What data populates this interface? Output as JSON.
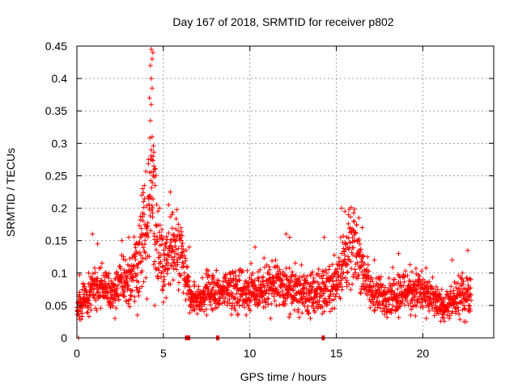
{
  "chart_data": {
    "type": "scatter",
    "title": "Day 167 of 2018, SRMTID for receiver p802",
    "xlabel": "GPS time / hours",
    "ylabel": "SRMTID / TECUs",
    "xlim": [
      0,
      24.1
    ],
    "ylim": [
      0,
      0.45
    ],
    "grid": true,
    "x_ticks": [
      {
        "value": 0,
        "label": "0"
      },
      {
        "value": 5,
        "label": "5"
      },
      {
        "value": 10,
        "label": "10"
      },
      {
        "value": 15,
        "label": "15"
      },
      {
        "value": 20,
        "label": "20"
      }
    ],
    "y_ticks": [
      {
        "value": 0,
        "label": "0"
      },
      {
        "value": 0.05,
        "label": "0.05"
      },
      {
        "value": 0.1,
        "label": "0.1"
      },
      {
        "value": 0.15,
        "label": "0.15"
      },
      {
        "value": 0.2,
        "label": "0.2"
      },
      {
        "value": 0.25,
        "label": "0.25"
      },
      {
        "value": 0.3,
        "label": "0.3"
      },
      {
        "value": 0.35,
        "label": "0.35"
      },
      {
        "value": 0.4,
        "label": "0.4"
      },
      {
        "value": 0.45,
        "label": "0.45"
      }
    ],
    "marker": "+",
    "series": [
      {
        "name": "SRMTID",
        "color": "#ff0000",
        "envelope_hours": [
          0,
          0.5,
          1,
          1.5,
          2,
          2.5,
          3,
          3.5,
          4,
          4.2,
          4.4,
          4.6,
          5,
          5.3,
          5.7,
          6,
          6.3,
          6.6,
          7,
          7.5,
          8,
          8.5,
          9,
          9.5,
          10,
          10.5,
          11,
          11.5,
          12,
          12.5,
          13,
          13.5,
          14,
          14.5,
          15,
          15.3,
          15.7,
          16,
          16.3,
          16.6,
          17,
          17.5,
          18,
          18.5,
          19,
          19.5,
          20,
          20.5,
          21,
          21.5,
          22,
          22.5,
          22.8
        ],
        "envelope_center": [
          0.045,
          0.06,
          0.08,
          0.08,
          0.075,
          0.085,
          0.09,
          0.11,
          0.17,
          0.21,
          0.25,
          0.18,
          0.11,
          0.125,
          0.145,
          0.13,
          0.1,
          0.065,
          0.06,
          0.07,
          0.07,
          0.075,
          0.08,
          0.075,
          0.075,
          0.075,
          0.08,
          0.08,
          0.075,
          0.075,
          0.07,
          0.065,
          0.07,
          0.075,
          0.09,
          0.11,
          0.13,
          0.14,
          0.13,
          0.1,
          0.07,
          0.065,
          0.065,
          0.07,
          0.075,
          0.075,
          0.07,
          0.06,
          0.05,
          0.05,
          0.06,
          0.07,
          0.07
        ],
        "envelope_spread": [
          0.02,
          0.025,
          0.03,
          0.03,
          0.025,
          0.03,
          0.035,
          0.05,
          0.07,
          0.08,
          0.12,
          0.08,
          0.04,
          0.04,
          0.045,
          0.04,
          0.035,
          0.02,
          0.02,
          0.025,
          0.025,
          0.025,
          0.03,
          0.03,
          0.03,
          0.03,
          0.03,
          0.035,
          0.03,
          0.03,
          0.03,
          0.03,
          0.03,
          0.03,
          0.035,
          0.045,
          0.05,
          0.05,
          0.045,
          0.035,
          0.025,
          0.025,
          0.025,
          0.03,
          0.03,
          0.03,
          0.03,
          0.025,
          0.02,
          0.02,
          0.025,
          0.03,
          0.025
        ],
        "points": [
          [
            4.3,
            0.445
          ],
          [
            4.35,
            0.43
          ],
          [
            4.4,
            0.44
          ],
          [
            4.25,
            0.42
          ],
          [
            4.3,
            0.4
          ],
          [
            4.35,
            0.385
          ],
          [
            4.2,
            0.37
          ],
          [
            4.3,
            0.36
          ],
          [
            4.25,
            0.335
          ],
          [
            4.35,
            0.31
          ],
          [
            4.3,
            0.29
          ],
          [
            4.4,
            0.28
          ],
          [
            4.45,
            0.265
          ],
          [
            4.5,
            0.26
          ],
          [
            4.4,
            0.25
          ],
          [
            4.2,
            0.255
          ],
          [
            3.8,
            0.23
          ],
          [
            3.9,
            0.235
          ],
          [
            3.75,
            0.22
          ],
          [
            3.85,
            0.21
          ],
          [
            5.4,
            0.225
          ],
          [
            5.3,
            0.205
          ],
          [
            5.5,
            0.19
          ],
          [
            15.3,
            0.2
          ],
          [
            15.5,
            0.195
          ],
          [
            15.7,
            0.19
          ],
          [
            16.0,
            0.18
          ],
          [
            16.3,
            0.185
          ],
          [
            16.5,
            0.17
          ],
          [
            15.9,
            0.165
          ],
          [
            0.1,
            0.0
          ],
          [
            0.15,
            0.097
          ],
          [
            0.9,
            0.16
          ],
          [
            1.2,
            0.145
          ],
          [
            2.6,
            0.15
          ],
          [
            3.0,
            0.155
          ],
          [
            6.5,
            0.14
          ],
          [
            10.3,
            0.14
          ],
          [
            12.1,
            0.16
          ],
          [
            12.3,
            0.155
          ],
          [
            14.3,
            0.155
          ],
          [
            17.2,
            0.12
          ],
          [
            18.6,
            0.13
          ],
          [
            21.7,
            0.12
          ],
          [
            22.6,
            0.135
          ],
          [
            22.5,
            0.025
          ],
          [
            20.2,
            0.03
          ],
          [
            13.5,
            0.03
          ],
          [
            11.2,
            0.03
          ],
          [
            2.2,
            0.03
          ],
          [
            7.5,
            0.035
          ],
          [
            9.3,
            0.035
          ],
          [
            19.3,
            0.035
          ],
          [
            3.5,
            0.035
          ],
          [
            4.05,
            0.06
          ],
          [
            4.5,
            0.05
          ],
          [
            5.0,
            0.055
          ]
        ]
      }
    ],
    "gap_markers": [
      {
        "x_start": 6.25,
        "x_end": 6.55,
        "y": 0
      },
      {
        "x_start": 8.05,
        "x_end": 8.15,
        "y": 0
      },
      {
        "x_start": 14.15,
        "x_end": 14.3,
        "y": 0
      }
    ]
  }
}
